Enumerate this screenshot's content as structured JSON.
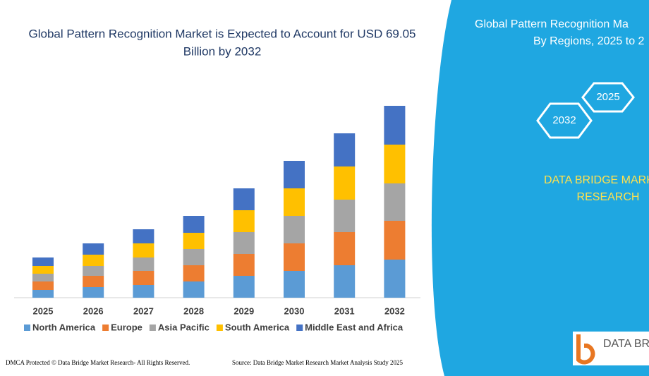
{
  "chart_data": {
    "type": "stacked-bar",
    "title": "Global Pattern Recognition Market is Expected to Account for USD 69.05",
    "title_line2": "Billion by 2032",
    "categories": [
      "2025",
      "2026",
      "2027",
      "2028",
      "2029",
      "2030",
      "2031",
      "2032"
    ],
    "series": [
      {
        "name": "North America",
        "color": "#5b9bd5",
        "values": [
          11,
          15,
          18,
          23,
          31,
          38,
          46,
          54
        ]
      },
      {
        "name": "Europe",
        "color": "#ed7d31",
        "values": [
          12,
          16,
          20,
          23,
          31,
          39,
          47,
          55
        ]
      },
      {
        "name": "Asia Pacific",
        "color": "#a5a5a5",
        "values": [
          11,
          14,
          19,
          23,
          31,
          39,
          46,
          53
        ]
      },
      {
        "name": "South America",
        "color": "#ffc000",
        "values": [
          11,
          16,
          20,
          23,
          31,
          39,
          47,
          55
        ]
      },
      {
        "name": "Middle East and Africa",
        "color": "#4472c4",
        "values": [
          12,
          16,
          20,
          24,
          31,
          39,
          47,
          55
        ]
      }
    ]
  },
  "panel": {
    "title_line1": "Global Pattern Recognition Ma",
    "title_line2": "By Regions, 2025 to 2",
    "hex_1": "2025",
    "hex_2": "2032",
    "brand_line1": "DATA BRIDGE MARK",
    "brand_line2": "RESEARCH",
    "logo": "DATA BRI"
  },
  "footer": {
    "left": "DMCA Protected © Data Bridge Market Research- All Rights Reserved.",
    "right": "Source: Data Bridge Market Research Market Analysis Study 2025"
  }
}
